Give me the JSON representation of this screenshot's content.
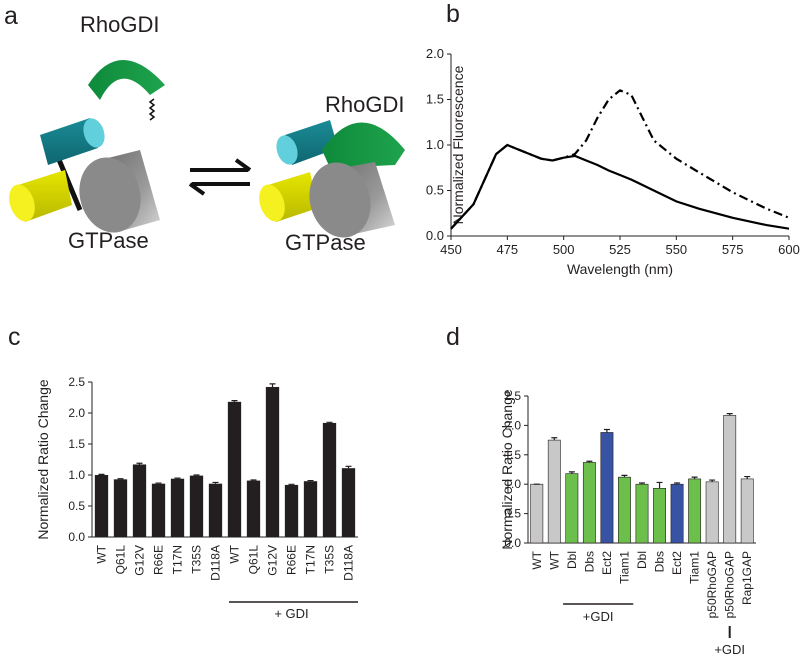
{
  "panel_labels": [
    "a",
    "b",
    "c",
    "d"
  ],
  "diagram": {
    "rhogdi_free": "RhoGDI",
    "rhogdi_bound": "RhoGDI",
    "gtpase_left": "GTPase",
    "gtpase_right": "GTPase"
  },
  "chart_data": [
    {
      "type": "line",
      "xlabel": "Wavelength (nm)",
      "ylabel": "Normalized Fluorescence",
      "x": [
        450,
        460,
        470,
        475,
        480,
        490,
        495,
        500,
        505,
        510,
        515,
        520,
        525,
        530,
        535,
        540,
        550,
        560,
        575,
        590,
        600
      ],
      "series": [
        {
          "color": "#000000",
          "dash": "solid",
          "values": [
            0.08,
            0.35,
            0.9,
            1.0,
            0.95,
            0.85,
            0.83,
            0.86,
            0.88,
            0.83,
            0.78,
            0.72,
            0.67,
            0.62,
            0.56,
            0.5,
            0.38,
            0.3,
            0.2,
            0.12,
            0.08
          ]
        },
        {
          "color": "#000000",
          "dash": "dashdot",
          "values": [
            0.08,
            0.35,
            0.9,
            1.0,
            0.95,
            0.85,
            0.83,
            0.86,
            0.9,
            1.05,
            1.3,
            1.5,
            1.6,
            1.55,
            1.3,
            1.05,
            0.85,
            0.7,
            0.48,
            0.3,
            0.2
          ]
        }
      ],
      "xlim": [
        450,
        600
      ],
      "xticks": [
        450,
        475,
        500,
        525,
        550,
        575,
        600
      ],
      "ylim": [
        0,
        2
      ],
      "yticks": [
        {
          "value": 0,
          "label": "0.0"
        },
        0.5,
        {
          "value": 1,
          "label": "1.0"
        },
        1.5,
        {
          "value": 2,
          "label": "2.0"
        }
      ]
    },
    {
      "type": "bar",
      "ylabel": "Normalized Ratio Change",
      "categories": [
        "WT",
        "Q61L",
        "G12V",
        "R66E",
        "T17N",
        "T35S",
        "D118A",
        "WT",
        "Q61L",
        "G12V",
        "R66E",
        "T17N",
        "T35S",
        "D118A"
      ],
      "values": [
        1.0,
        0.93,
        1.17,
        0.86,
        0.94,
        0.99,
        0.86,
        2.18,
        0.91,
        2.42,
        0.84,
        0.9,
        1.84,
        1.11
      ],
      "errors": [
        0.01,
        0.01,
        0.02,
        0.01,
        0.01,
        0.01,
        0.02,
        0.02,
        0.01,
        0.05,
        0.01,
        0.01,
        0.01,
        0.03
      ],
      "color": "#231f20",
      "annotations": [
        "+ GDI"
      ],
      "ylim": [
        0,
        2.5
      ],
      "yticks": [
        {
          "value": 0,
          "label": "0.0"
        },
        0.5,
        {
          "value": 1,
          "label": "1.0"
        },
        1.5,
        {
          "value": 2,
          "label": "2.0"
        },
        2.5
      ]
    },
    {
      "type": "bar",
      "ylabel": "Normalized Ratio Change",
      "categories": [
        "WT",
        "WT",
        "Dbl",
        "Dbs",
        "Ect2",
        "Tiam1",
        "Dbl",
        "Dbs",
        "Ect2",
        "Tiam1",
        "p50RhoGAP",
        "p50RhoGAP",
        "Rap1GAP"
      ],
      "values": [
        1.0,
        1.75,
        1.18,
        1.37,
        1.88,
        1.12,
        1.0,
        0.93,
        1.0,
        1.09,
        1.04,
        2.17,
        1.09
      ],
      "errors": [
        0,
        0.04,
        0.03,
        0.02,
        0.05,
        0.03,
        0.02,
        0.1,
        0.02,
        0.03,
        0.03,
        0.03,
        0.04
      ],
      "colors": [
        "#c8c8c8",
        "#c8c8c8",
        "#6cbf4a",
        "#6cbf4a",
        "#3953a4",
        "#6cbf4a",
        "#6cbf4a",
        "#6cbf4a",
        "#3953a4",
        "#6cbf4a",
        "#c8c8c8",
        "#c8c8c8",
        "#c8c8c8"
      ],
      "annotations": [
        "+GDI",
        "+GDI"
      ],
      "ylim": [
        0,
        2.5
      ],
      "yticks": [
        {
          "value": 0,
          "label": "0.0"
        },
        0.5,
        {
          "value": 1,
          "label": "1.0"
        },
        1.5,
        {
          "value": 2,
          "label": "2.0"
        },
        2.5
      ]
    }
  ]
}
